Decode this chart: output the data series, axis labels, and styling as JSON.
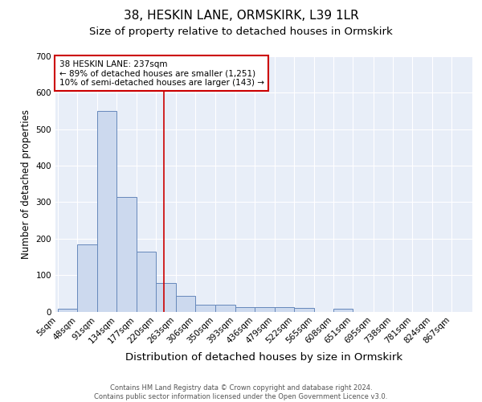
{
  "title1": "38, HESKIN LANE, ORMSKIRK, L39 1LR",
  "title2": "Size of property relative to detached houses in Ormskirk",
  "xlabel": "Distribution of detached houses by size in Ormskirk",
  "ylabel": "Number of detached properties",
  "bin_labels": [
    "5sqm",
    "48sqm",
    "91sqm",
    "134sqm",
    "177sqm",
    "220sqm",
    "263sqm",
    "306sqm",
    "350sqm",
    "393sqm",
    "436sqm",
    "479sqm",
    "522sqm",
    "565sqm",
    "608sqm",
    "651sqm",
    "695sqm",
    "738sqm",
    "781sqm",
    "824sqm",
    "867sqm"
  ],
  "bin_edges": [
    5,
    48,
    91,
    134,
    177,
    220,
    263,
    306,
    350,
    393,
    436,
    479,
    522,
    565,
    608,
    651,
    695,
    738,
    781,
    824,
    867
  ],
  "bar_heights": [
    8,
    185,
    550,
    315,
    165,
    78,
    42,
    18,
    18,
    12,
    13,
    13,
    9,
    0,
    7,
    0,
    0,
    0,
    0,
    0,
    0
  ],
  "bar_facecolor": "#ccd9ee",
  "bar_edgecolor": "#6688bb",
  "vline_x": 237,
  "vline_color": "#cc0000",
  "annotation_line1": "38 HESKIN LANE: 237sqm",
  "annotation_line2": "← 89% of detached houses are smaller (1,251)",
  "annotation_line3": "10% of semi-detached houses are larger (143) →",
  "annotation_box_color": "white",
  "annotation_box_edge": "#cc0000",
  "ylim": [
    0,
    700
  ],
  "yticks": [
    0,
    100,
    200,
    300,
    400,
    500,
    600,
    700
  ],
  "background_color": "#e8eef8",
  "footer": "Contains HM Land Registry data © Crown copyright and database right 2024.\nContains public sector information licensed under the Open Government Licence v3.0.",
  "title1_fontsize": 11,
  "title2_fontsize": 9.5,
  "xlabel_fontsize": 9.5,
  "ylabel_fontsize": 8.5,
  "tick_fontsize": 7.5,
  "annot_fontsize": 7.5
}
